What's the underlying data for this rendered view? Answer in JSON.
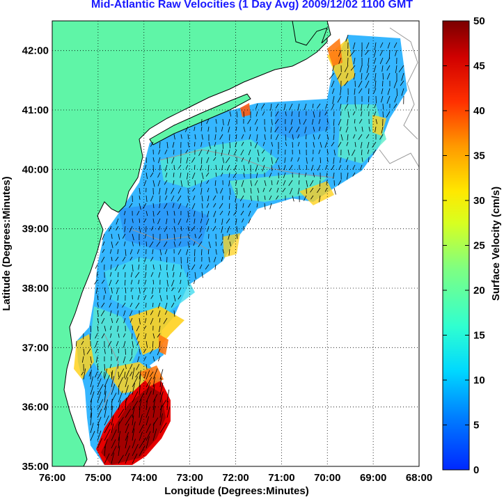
{
  "chart_data": {
    "type": "heatmap",
    "title": "Mid-Atlantic Raw Velocities (1 Day Avg) 2009/12/02 1100 GMT",
    "xlabel": "Longitude (Degrees:Minutes)",
    "ylabel": "Latitude (Degrees:Minutes)",
    "colorbar_label": "Surface Velocity (cm/s)",
    "xlim": [
      -76,
      -68
    ],
    "ylim": [
      35,
      42.5
    ],
    "clim": [
      0,
      50
    ],
    "x_ticks": [
      "76:00",
      "75:00",
      "74:00",
      "73:00",
      "72:00",
      "71:00",
      "70:00",
      "69:00",
      "68:00"
    ],
    "y_ticks": [
      "35:00",
      "36:00",
      "37:00",
      "38:00",
      "39:00",
      "40:00",
      "41:00",
      "42:00"
    ],
    "colorbar_ticks": [
      "0",
      "5",
      "10",
      "15",
      "20",
      "25",
      "30",
      "35",
      "40",
      "45",
      "50"
    ],
    "grid": "dotted",
    "colors": {
      "land": "#5ff5a7",
      "title": "#1a1aff",
      "vector": "#000000"
    }
  }
}
